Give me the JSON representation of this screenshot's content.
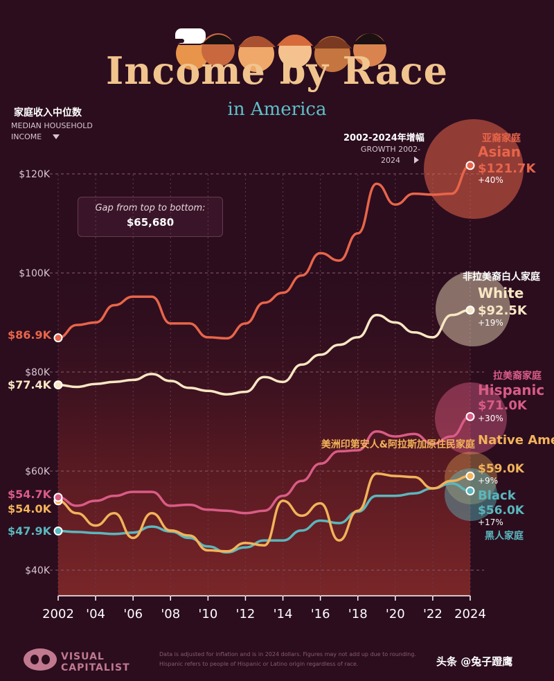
{
  "header": {
    "title": "Income by Race",
    "subtitle": "in America"
  },
  "y_axis_label": {
    "cn": "家庭收入中位数",
    "en": "MEDIAN HOUSEHOLD INCOME"
  },
  "growth_header": {
    "cn": "2002-2024年增幅",
    "en": "GROWTH 2002-2024"
  },
  "gap_box": {
    "label": "Gap from top to bottom:",
    "value": "$65,680"
  },
  "footnote": "Data is adjusted for inflation and is in 2024 dollars. Figures may not add up due to rounding. Hispanic refers to people of Hispanic or Latino origin regardless of race.",
  "logo": {
    "line1": "VISUAL",
    "line2": "CAPITALIST"
  },
  "watermark": "头条 @兔子蹬鹰",
  "colors": {
    "background": "#2b0d1e",
    "asian": "#e8654a",
    "white": "#f8e7c4",
    "hispanic": "#d95c86",
    "native_american": "#f2b35a",
    "black": "#5ab7bd"
  },
  "chart_data": {
    "type": "line",
    "title": "Income by Race",
    "subtitle": "in America",
    "ylabel": "MEDIAN HOUSEHOLD INCOME",
    "ylim": [
      35000,
      125000
    ],
    "xlim": [
      2002,
      2024
    ],
    "yticks": [
      {
        "value": 40000,
        "label": "$40K"
      },
      {
        "value": 60000,
        "label": "$60K"
      },
      {
        "value": 80000,
        "label": "$80K"
      },
      {
        "value": 100000,
        "label": "$100K"
      },
      {
        "value": 120000,
        "label": "$120K"
      }
    ],
    "xticks": [
      {
        "value": 2002,
        "label": "2002"
      },
      {
        "value": 2004,
        "label": "'04"
      },
      {
        "value": 2006,
        "label": "'06"
      },
      {
        "value": 2008,
        "label": "'08"
      },
      {
        "value": 2010,
        "label": "'10"
      },
      {
        "value": 2012,
        "label": "'12"
      },
      {
        "value": 2014,
        "label": "'14"
      },
      {
        "value": 2016,
        "label": "'16"
      },
      {
        "value": 2018,
        "label": "'18"
      },
      {
        "value": 2020,
        "label": "'20"
      },
      {
        "value": 2022,
        "label": "'22"
      },
      {
        "value": 2024,
        "label": "2024"
      }
    ],
    "grid": true,
    "x": [
      2002,
      2003,
      2004,
      2005,
      2006,
      2007,
      2008,
      2009,
      2010,
      2011,
      2012,
      2013,
      2014,
      2015,
      2016,
      2017,
      2018,
      2019,
      2020,
      2021,
      2022,
      2023,
      2024
    ],
    "series": [
      {
        "key": "asian",
        "name": "Asian",
        "name_cn": "亚裔家庭",
        "color": "#e8654a",
        "values": [
          86900,
          89500,
          90000,
          93500,
          95200,
          95200,
          89800,
          89800,
          87000,
          86800,
          89800,
          94000,
          96000,
          99500,
          104000,
          102500,
          108000,
          118000,
          113800,
          116000,
          115800,
          116000,
          121700
        ],
        "start_label": "$86.9K",
        "end_label": "$121.7K",
        "growth": "+40%"
      },
      {
        "key": "white",
        "name": "White",
        "name_cn": "非拉美裔白人家庭",
        "color": "#f8e7c4",
        "values": [
          77400,
          77000,
          77600,
          78000,
          78400,
          79600,
          78200,
          76800,
          76200,
          75500,
          76000,
          79000,
          78000,
          81500,
          83500,
          85500,
          87000,
          91500,
          90000,
          88000,
          87000,
          91500,
          92500
        ],
        "start_label": "$77.4K",
        "end_label": "$92.5K",
        "growth": "+19%"
      },
      {
        "key": "hispanic",
        "name": "Hispanic",
        "name_cn": "拉美裔家庭",
        "color": "#d95c86",
        "values": [
          54700,
          53000,
          54000,
          55000,
          55800,
          55800,
          53000,
          53200,
          52200,
          52000,
          51500,
          52000,
          55000,
          58000,
          61500,
          64000,
          64200,
          68000,
          67000,
          67500,
          65500,
          67000,
          71000
        ],
        "start_label": "$54.7K",
        "end_label": "$71.0K",
        "growth": "+30%"
      },
      {
        "key": "native_american",
        "name": "Native American",
        "name_cn": "美洲印第安人&阿拉斯加原住民家庭",
        "color": "#f2b35a",
        "values": [
          54000,
          51500,
          49000,
          51500,
          46500,
          51500,
          48000,
          47000,
          44000,
          43800,
          45500,
          45000,
          54000,
          51000,
          53500,
          46000,
          52000,
          59500,
          59000,
          58800,
          56500,
          58000,
          59000
        ],
        "start_label": "$54.0K",
        "end_label": "$59.0K",
        "growth": "+9%"
      },
      {
        "key": "black",
        "name": "Black",
        "name_cn": "黑人家庭",
        "color": "#5ab7bd",
        "values": [
          47900,
          47700,
          47500,
          47300,
          47600,
          48800,
          47800,
          46500,
          44800,
          43600,
          44600,
          46000,
          46000,
          48000,
          50000,
          49500,
          51800,
          55000,
          55000,
          55500,
          56500,
          57500,
          56000
        ],
        "start_label": "$47.9K",
        "end_label": "$56.0K",
        "growth": "+17%"
      }
    ]
  }
}
